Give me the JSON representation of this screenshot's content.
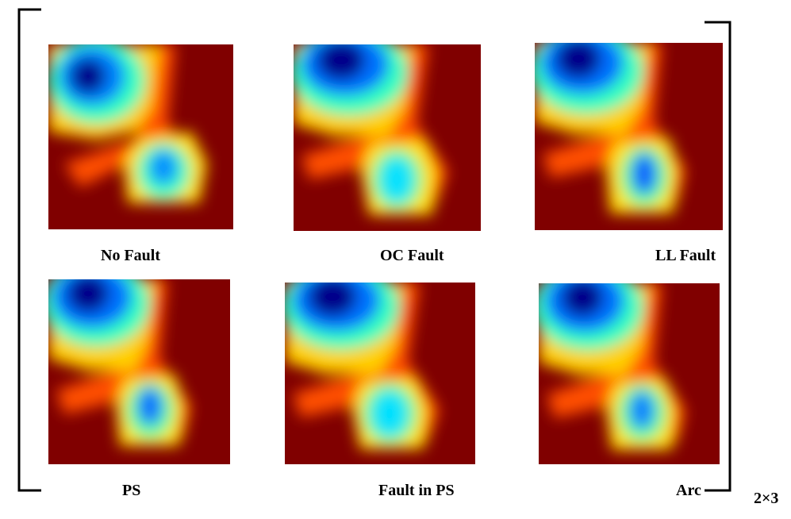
{
  "matrix": {
    "dimension": "2×3",
    "cells": [
      {
        "label": "No Fault"
      },
      {
        "label": "OC Fault"
      },
      {
        "label": "LL Fault"
      },
      {
        "label": "PS"
      },
      {
        "label": "Fault in PS"
      },
      {
        "label": "Arc"
      }
    ]
  },
  "colors": {
    "background_red": "#800000",
    "colormap": "jet"
  }
}
